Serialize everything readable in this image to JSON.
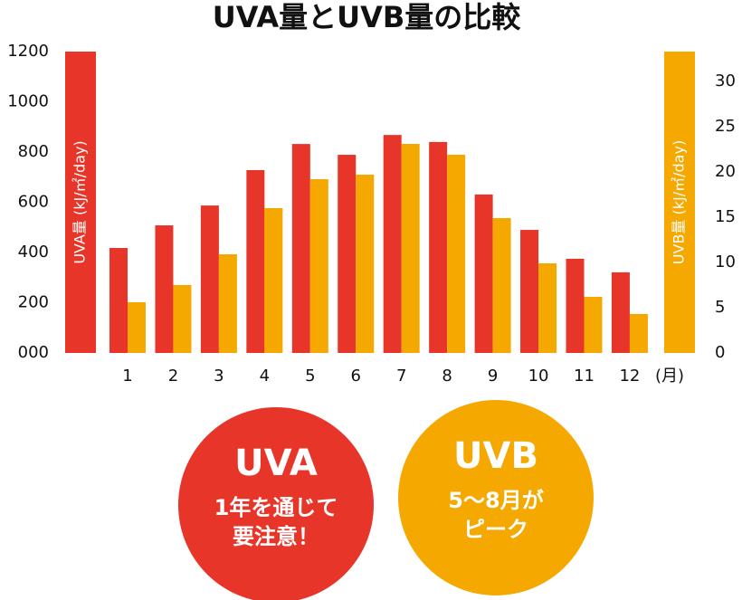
{
  "chart_data": {
    "type": "bar",
    "title": "UVA量とUVB量の比較",
    "categories": [
      "1",
      "2",
      "3",
      "4",
      "5",
      "6",
      "7",
      "8",
      "9",
      "10",
      "11",
      "12"
    ],
    "xlabel": "(月)",
    "ylabel": "UVA量 (kJ/㎡/day)",
    "y2label": "UVB量 (kJ/㎡/day)",
    "series": [
      {
        "name": "UVA",
        "color": "#e8352a",
        "values": [
          418,
          508,
          587,
          728,
          832,
          789,
          868,
          840,
          631,
          490,
          375,
          321
        ]
      },
      {
        "name": "UVB",
        "color": "#f5a800",
        "axis": "y2",
        "values": [
          5.6,
          7.5,
          10.9,
          16.0,
          19.2,
          19.7,
          23.1,
          21.9,
          14.9,
          9.9,
          6.2,
          4.3
        ]
      }
    ],
    "ylim": [
      0,
      1200
    ],
    "yticks": [
      {
        "value": 0,
        "label": "000"
      },
      200,
      400,
      600,
      800,
      1000,
      1200
    ],
    "y2lim": [
      0,
      33.3
    ],
    "y2ticks": [
      0,
      5,
      10,
      15,
      20,
      25,
      30
    ]
  },
  "callouts": [
    {
      "title": "UVA",
      "lines": [
        "1年を通じて",
        "要注意！"
      ],
      "color": "#e8352a"
    },
    {
      "title": "UVB",
      "lines": [
        "5〜8月が",
        "ピーク"
      ],
      "color": "#f5a800"
    }
  ]
}
